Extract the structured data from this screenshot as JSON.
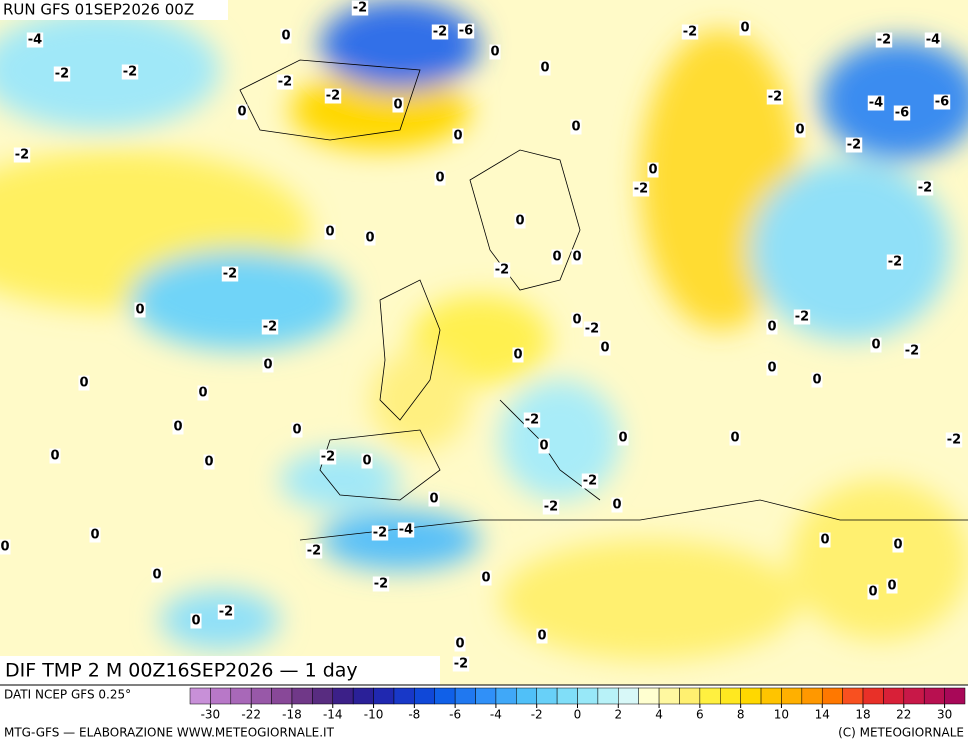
{
  "header": {
    "run": "RUN GFS 01SEP2026 00Z"
  },
  "map": {
    "title": "DIF TMP 2 M 00Z16SEP2026 — 1 day",
    "contour_labels": [
      -4,
      -2,
      -2,
      -2,
      -2,
      -2,
      -6,
      -2,
      -2,
      0,
      0,
      0,
      0,
      0,
      0,
      0,
      0,
      0,
      0,
      -2,
      -2,
      0,
      0,
      0,
      0,
      0,
      0,
      0,
      0,
      -2,
      0,
      0,
      -2,
      -4,
      -2,
      -2,
      0,
      -2,
      0,
      0,
      -2,
      0,
      0,
      -2,
      -2,
      0,
      -2,
      0,
      0,
      -2,
      0,
      0,
      0,
      -2,
      0,
      0,
      0,
      -2,
      0,
      -2,
      0,
      -2,
      0,
      -2,
      -4,
      -6,
      -6,
      -4,
      -2,
      -2,
      -2,
      -2,
      0,
      0,
      0,
      0,
      -2,
      0,
      -2,
      0,
      0,
      0,
      0,
      0,
      0
    ]
  },
  "colorbar": {
    "source": "DATI NCEP GFS 0.25°",
    "ticks": [
      -30,
      -22,
      -18,
      -14,
      -10,
      -8,
      -6,
      -4,
      -2,
      0,
      2,
      4,
      6,
      8,
      10,
      14,
      18,
      22,
      30
    ],
    "colors": [
      "#c890d8",
      "#b878c8",
      "#a868b8",
      "#9858a8",
      "#884898",
      "#703888",
      "#582c80",
      "#3c2088",
      "#2a2098",
      "#2028b0",
      "#1838c8",
      "#1048d8",
      "#1060e8",
      "#2078f0",
      "#3090f8",
      "#40a8f8",
      "#50c0f8",
      "#68d0f8",
      "#80def8",
      "#98e8f8",
      "#b8f2f8",
      "#d8f8f8",
      "#ffffd0",
      "#fff8a0",
      "#fff070",
      "#fff040",
      "#ffe820",
      "#ffd800",
      "#ffc400",
      "#ffb000",
      "#ff9800",
      "#ff7800",
      "#f85020",
      "#e83028",
      "#d82038",
      "#c81848",
      "#b81050",
      "#a80858"
    ]
  },
  "footer": {
    "left": "MTG-GFS — ELABORAZIONE WWW.METEOGIORNALE.IT",
    "right": "(C) METEOGIORNALE"
  }
}
